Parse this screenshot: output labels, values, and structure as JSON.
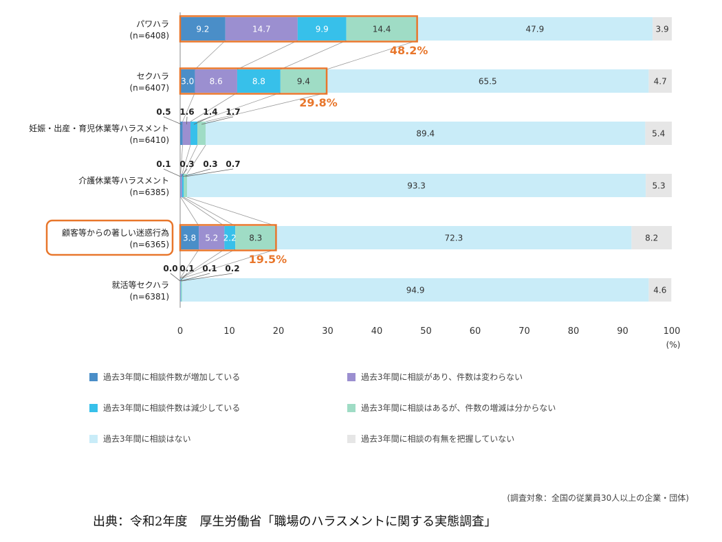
{
  "chart_data": {
    "type": "bar",
    "orientation": "horizontal-stacked",
    "categories": [
      {
        "label": "パワハラ",
        "n": "(n=6408)"
      },
      {
        "label": "セクハラ",
        "n": "(n=6407)"
      },
      {
        "label": "妊娠・出産・育児休業等ハラスメント",
        "n": "(n=6410)"
      },
      {
        "label": "介護休業等ハラスメント",
        "n": "(n=6385)"
      },
      {
        "label": "顧客等からの著しい迷惑行為",
        "n": "(n=6365)"
      },
      {
        "label": "就活等セクハラ",
        "n": "(n=6381)"
      }
    ],
    "series": [
      {
        "name": "過去3年間に相談件数が増加している",
        "color": "#4a8ec8",
        "values": [
          9.2,
          3.0,
          0.5,
          0.1,
          3.8,
          0.0
        ]
      },
      {
        "name": "過去3年間に相談があり、件数は変わらない",
        "color": "#9b8fd0",
        "values": [
          14.7,
          8.6,
          1.6,
          0.3,
          5.2,
          0.1
        ]
      },
      {
        "name": "過去3年間に相談件数は減少している",
        "color": "#37c0ea",
        "values": [
          9.9,
          8.8,
          1.4,
          0.3,
          2.2,
          0.1
        ]
      },
      {
        "name": "過去3年間に相談はあるが、件数の増減は分からない",
        "color": "#9fdcc5",
        "values": [
          14.4,
          9.4,
          1.7,
          0.7,
          8.3,
          0.2
        ]
      },
      {
        "name": "過去3年間に相談はない",
        "color": "#c9ecf8",
        "values": [
          47.9,
          65.5,
          89.4,
          93.3,
          72.3,
          94.9
        ]
      },
      {
        "name": "過去3年間に相談の有無を把握していない",
        "color": "#e6e6e6",
        "values": [
          3.9,
          4.7,
          5.4,
          5.3,
          8.2,
          4.6
        ]
      }
    ],
    "value_labels": [
      [
        "9.2",
        "14.7",
        "9.9",
        "14.4",
        "47.9",
        "3.9"
      ],
      [
        "3.0",
        "8.6",
        "8.8",
        "9.4",
        "65.5",
        "4.7"
      ],
      [
        "0.5",
        "1.6",
        "1.4",
        "1.7",
        "89.4",
        "5.4"
      ],
      [
        "0.1",
        "0.3",
        "0.3",
        "0.7",
        "93.3",
        "5.3"
      ],
      [
        "3.8",
        "5.2",
        "2.2",
        "8.3",
        "72.3",
        "8.2"
      ],
      [
        "0.0",
        "0.1",
        "0.1",
        "0.2",
        "94.9",
        "4.6"
      ]
    ],
    "totals": [
      {
        "category_index": 0,
        "value": 48.2,
        "label": "48.2%"
      },
      {
        "category_index": 1,
        "value": 29.8,
        "label": "29.8%"
      },
      {
        "category_index": 4,
        "value": 19.5,
        "label": "19.5%"
      }
    ],
    "highlighted_category": 4,
    "highlight_color": "#e8762b",
    "x_ticks": [
      "0",
      "10",
      "20",
      "30",
      "40",
      "50",
      "60",
      "70",
      "80",
      "90",
      "100"
    ],
    "x_unit": "(%)",
    "xlim": [
      0,
      100
    ]
  },
  "survey_note": "(調査対象：全国の従業員30人以上の企業・団体)",
  "source": "出典：令和2年度　厚生労働省「職場のハラスメントに関する実態調査」"
}
